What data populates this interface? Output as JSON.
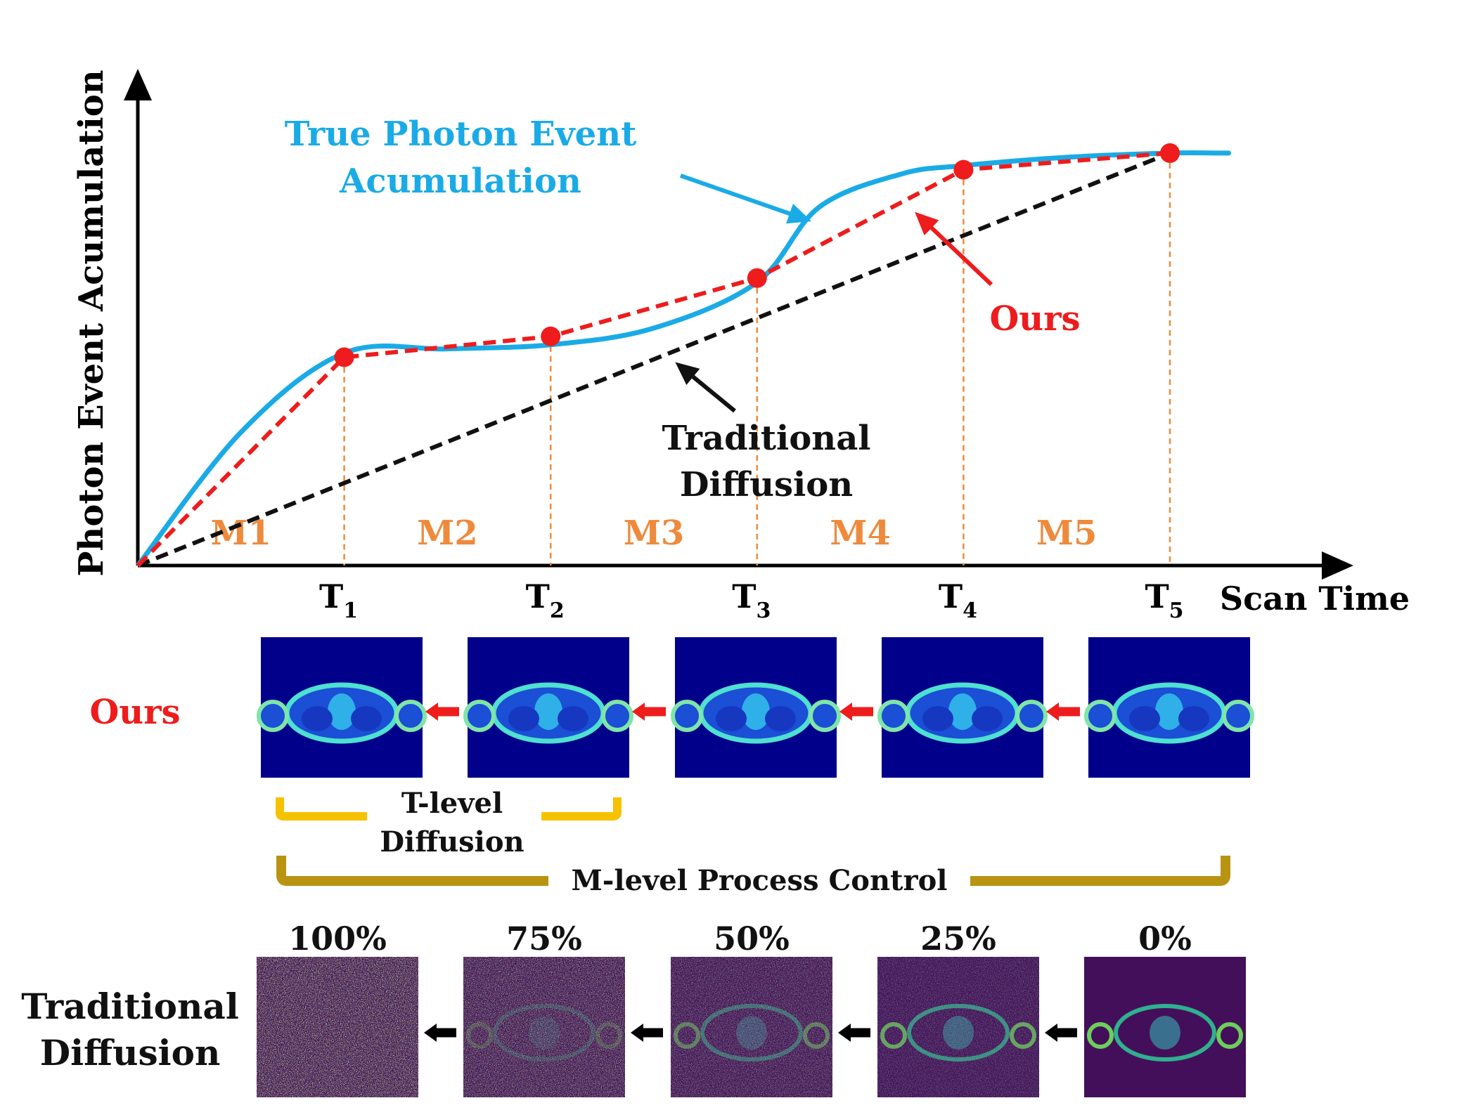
{
  "chart_data": {
    "type": "line",
    "ylabel": "Photon Event Acumulation",
    "xlabel": "Scan Time",
    "x_ticks": [
      "T",
      "T",
      "T",
      "T",
      "T"
    ],
    "x_tick_subscripts": [
      "1",
      "2",
      "3",
      "4",
      "5"
    ],
    "phases": [
      "M1",
      "M2",
      "M3",
      "M4",
      "M5"
    ],
    "series": [
      {
        "name": "True Photon Event Acumulation",
        "x": [
          0,
          0.5,
          1,
          1.5,
          2,
          2.5,
          3,
          3.3,
          3.7,
          4,
          4.5,
          5,
          5.25
        ],
        "y": [
          0,
          0.32,
          0.51,
          0.52,
          0.53,
          0.57,
          0.68,
          0.86,
          0.94,
          0.96,
          0.98,
          0.99,
          0.99
        ]
      },
      {
        "name": "Ours",
        "x": [
          0,
          1,
          2,
          3,
          4,
          5
        ],
        "y": [
          0,
          0.5,
          0.55,
          0.69,
          0.95,
          0.99
        ]
      },
      {
        "name": "Traditional Diffusion",
        "x": [
          0,
          5
        ],
        "y": [
          0,
          0.99
        ]
      }
    ],
    "colors": {
      "true": "#1aabe6",
      "ours": "#ee1c1c",
      "traditional": "#111111",
      "guides": "#ed8a3a",
      "phase_labels": "#ee8a3c"
    }
  },
  "annotations": {
    "true_label_line1": "True Photon Event",
    "true_label_line2": "Acumulation",
    "ours_label": "Ours",
    "trad_label_line1": "Traditional",
    "trad_label_line2": "Diffusion"
  },
  "rows": {
    "ours_label": "Ours",
    "trad_label_line1": "Traditional",
    "trad_label_line2": "Diffusion",
    "percents": [
      "100%",
      "75%",
      "50%",
      "25%",
      "0%"
    ]
  },
  "brackets": {
    "t_level_line1": "T-level",
    "t_level_line2": "Diffusion",
    "m_level": "M-level Process Control",
    "t_level_color": "#f6c200",
    "m_level_color": "#b89412"
  },
  "image_colors": {
    "ours_bg": "#00008b",
    "trad_bg": "#440f5a"
  }
}
